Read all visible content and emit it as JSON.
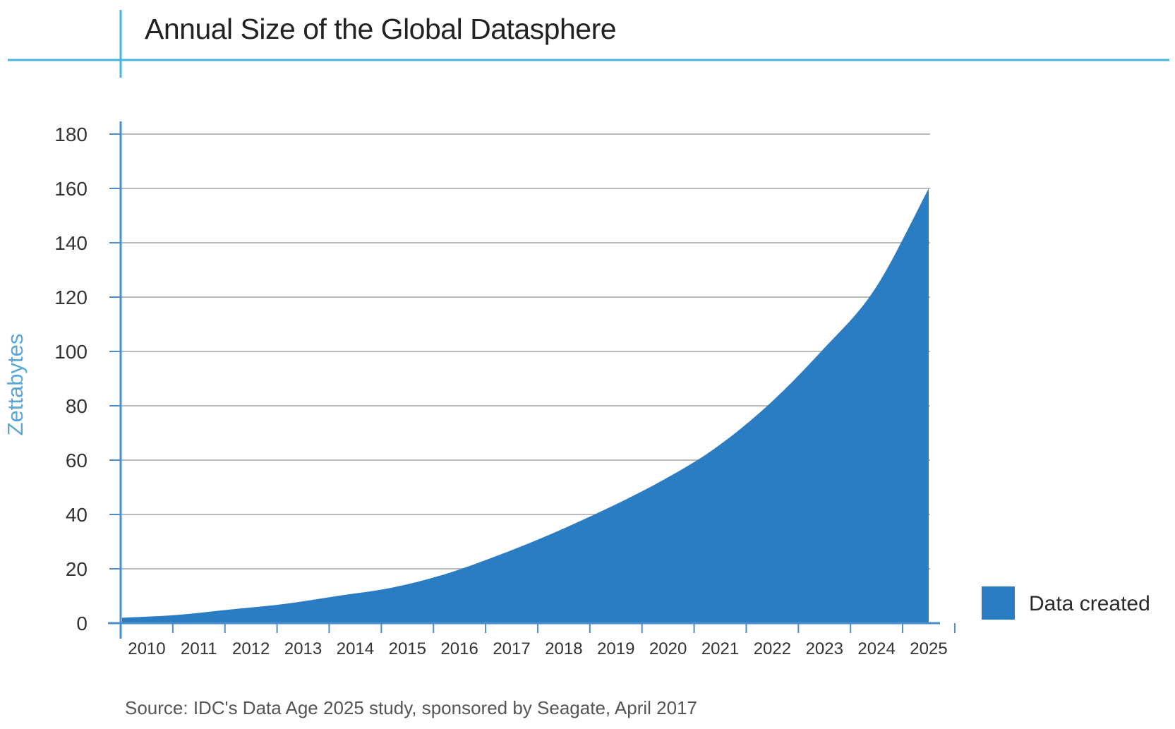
{
  "chart_data": {
    "type": "area",
    "title": "Annual Size of the Global Datasphere",
    "xlabel": "",
    "ylabel": "Zettabytes",
    "x": [
      "2010",
      "2011",
      "2012",
      "2013",
      "2014",
      "2015",
      "2016",
      "2017",
      "2018",
      "2019",
      "2020",
      "2021",
      "2022",
      "2023",
      "2024",
      "2025"
    ],
    "series": [
      {
        "name": "Data created",
        "values": [
          2,
          3,
          5,
          7,
          10,
          13,
          18,
          25,
          33,
          42,
          52,
          64,
          80,
          100,
          123,
          160
        ]
      }
    ],
    "ylim": [
      0,
      180
    ],
    "yticks": [
      0,
      20,
      40,
      60,
      80,
      100,
      120,
      140,
      160,
      180
    ],
    "grid": true,
    "legend": "right",
    "source": "Source: IDC's Data Age 2025 study, sponsored by Seagate, April 2017"
  },
  "colors": {
    "area": "#2a7dc3",
    "accent_line": "#45b4e1",
    "axis": "#4a8fcf",
    "grid": "#bbbbbb",
    "ylabel": "#5aa6d4"
  }
}
